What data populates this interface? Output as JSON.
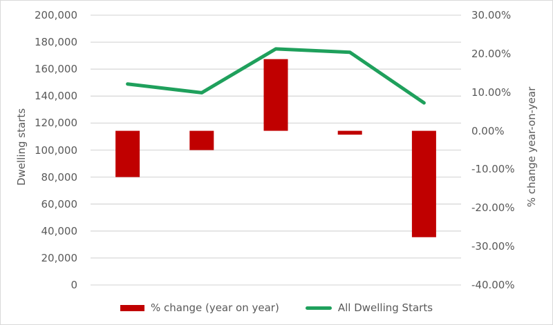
{
  "chart_data": {
    "type": "combo",
    "title": "",
    "categories": [
      "",
      "",
      "",
      "",
      ""
    ],
    "x_axis_labels_visible": false,
    "grid": true,
    "legend_position": "bottom",
    "series": [
      {
        "name": "% change (year on year)",
        "type": "bar",
        "axis": "right",
        "color": "#c00000",
        "values": [
          -12.0,
          -5.0,
          18.6,
          -1.0,
          -27.6
        ]
      },
      {
        "name": "All Dwelling Starts",
        "type": "line",
        "axis": "left",
        "color": "#1fa05c",
        "values": [
          149000,
          142500,
          175000,
          172500,
          135000
        ]
      }
    ],
    "left_axis": {
      "title": "Dwelling starts",
      "min": 0,
      "max": 200000,
      "step": 20000,
      "tick_labels": [
        "200,000",
        "180,000",
        "160,000",
        "140,000",
        "120,000",
        "100,000",
        "80,000",
        "60,000",
        "40,000",
        "20,000",
        "0"
      ]
    },
    "right_axis": {
      "title": "% change year-on-year",
      "min": -40,
      "max": 30,
      "step": 10,
      "tick_labels": [
        "30.00%",
        "20.00%",
        "10.00%",
        "0.00%",
        "-10.00%",
        "-20.00%",
        "-30.00%",
        "-40.00%"
      ]
    }
  },
  "colors": {
    "bar": "#c00000",
    "line": "#1fa05c",
    "gridline": "#d9d9d9",
    "text": "#595959",
    "chart_border": "#d9d9d9",
    "background": "#ffffff"
  }
}
